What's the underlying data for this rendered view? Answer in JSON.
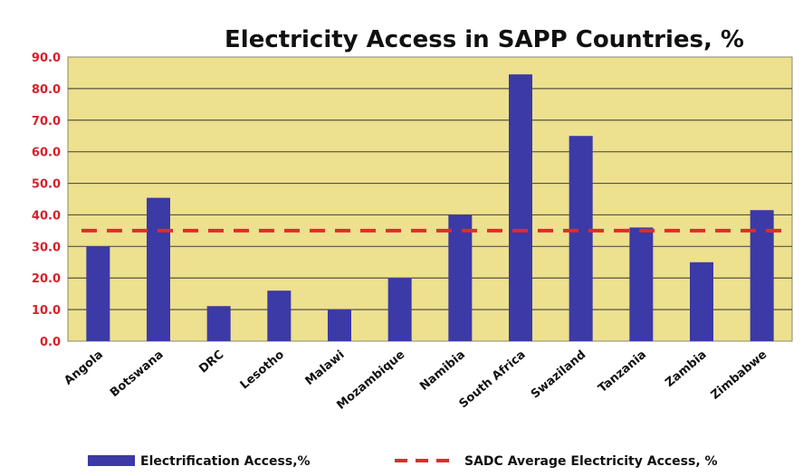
{
  "chart_data": {
    "type": "bar",
    "title": "Electricity Access in SAPP Countries, %",
    "xlabel": "",
    "ylabel": "",
    "ylim": [
      0,
      90
    ],
    "yticks": [
      "0.0",
      "10.0",
      "20.0",
      "30.0",
      "40.0",
      "50.0",
      "60.0",
      "70.0",
      "80.0",
      "90.0"
    ],
    "grid": true,
    "legend_position": "bottom",
    "categories": [
      "Angola",
      "Botswana",
      "DRC",
      "Lesotho",
      "Malawi",
      "Mozambique",
      "Namibia",
      "South Africa",
      "Swaziland",
      "Tanzania",
      "Zambia",
      "Zimbabwe"
    ],
    "series": [
      {
        "name": "Electrification Access,%",
        "type": "bar",
        "color": "#3b3aa6",
        "values": [
          30,
          45.4,
          11.1,
          16,
          10,
          20,
          40,
          84.5,
          65,
          36,
          25,
          41.5
        ]
      },
      {
        "name": "SADC Average Electricity Access, %",
        "type": "line",
        "style": "dashed",
        "color": "#e02b2b",
        "value": 35
      }
    ],
    "plot_background": "#ede08e"
  }
}
